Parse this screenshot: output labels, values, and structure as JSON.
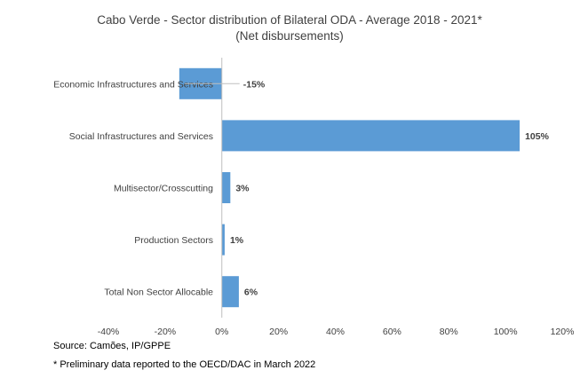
{
  "chart_data": {
    "type": "bar",
    "orientation": "horizontal",
    "title": "Cabo Verde - Sector distribution of Bilateral ODA - Average 2018 - 2021*",
    "subtitle": "(Net disbursements)",
    "categories": [
      "Economic Infrastructures and Services",
      "Social Infrastructures and Services",
      "Multisector/Crosscutting",
      "Production Sectors",
      "Total Non Sector Allocable"
    ],
    "values": [
      -15,
      105,
      3,
      1,
      6
    ],
    "data_labels": [
      "-15%",
      "105%",
      "3%",
      "1%",
      "6%"
    ],
    "xlim": [
      -40,
      120
    ],
    "xticks": [
      -40,
      -20,
      0,
      20,
      40,
      60,
      80,
      100,
      120
    ],
    "xtick_labels": [
      "-40%",
      "-20%",
      "0%",
      "20%",
      "40%",
      "60%",
      "80%",
      "100%",
      "120%"
    ],
    "bar_color": "#5B9BD5",
    "grid": false,
    "legend": "none"
  },
  "notes": {
    "source": "Source: Camões, IP/GPPE",
    "footnote": "* Preliminary data reported to the OECD/DAC in March 2022"
  }
}
